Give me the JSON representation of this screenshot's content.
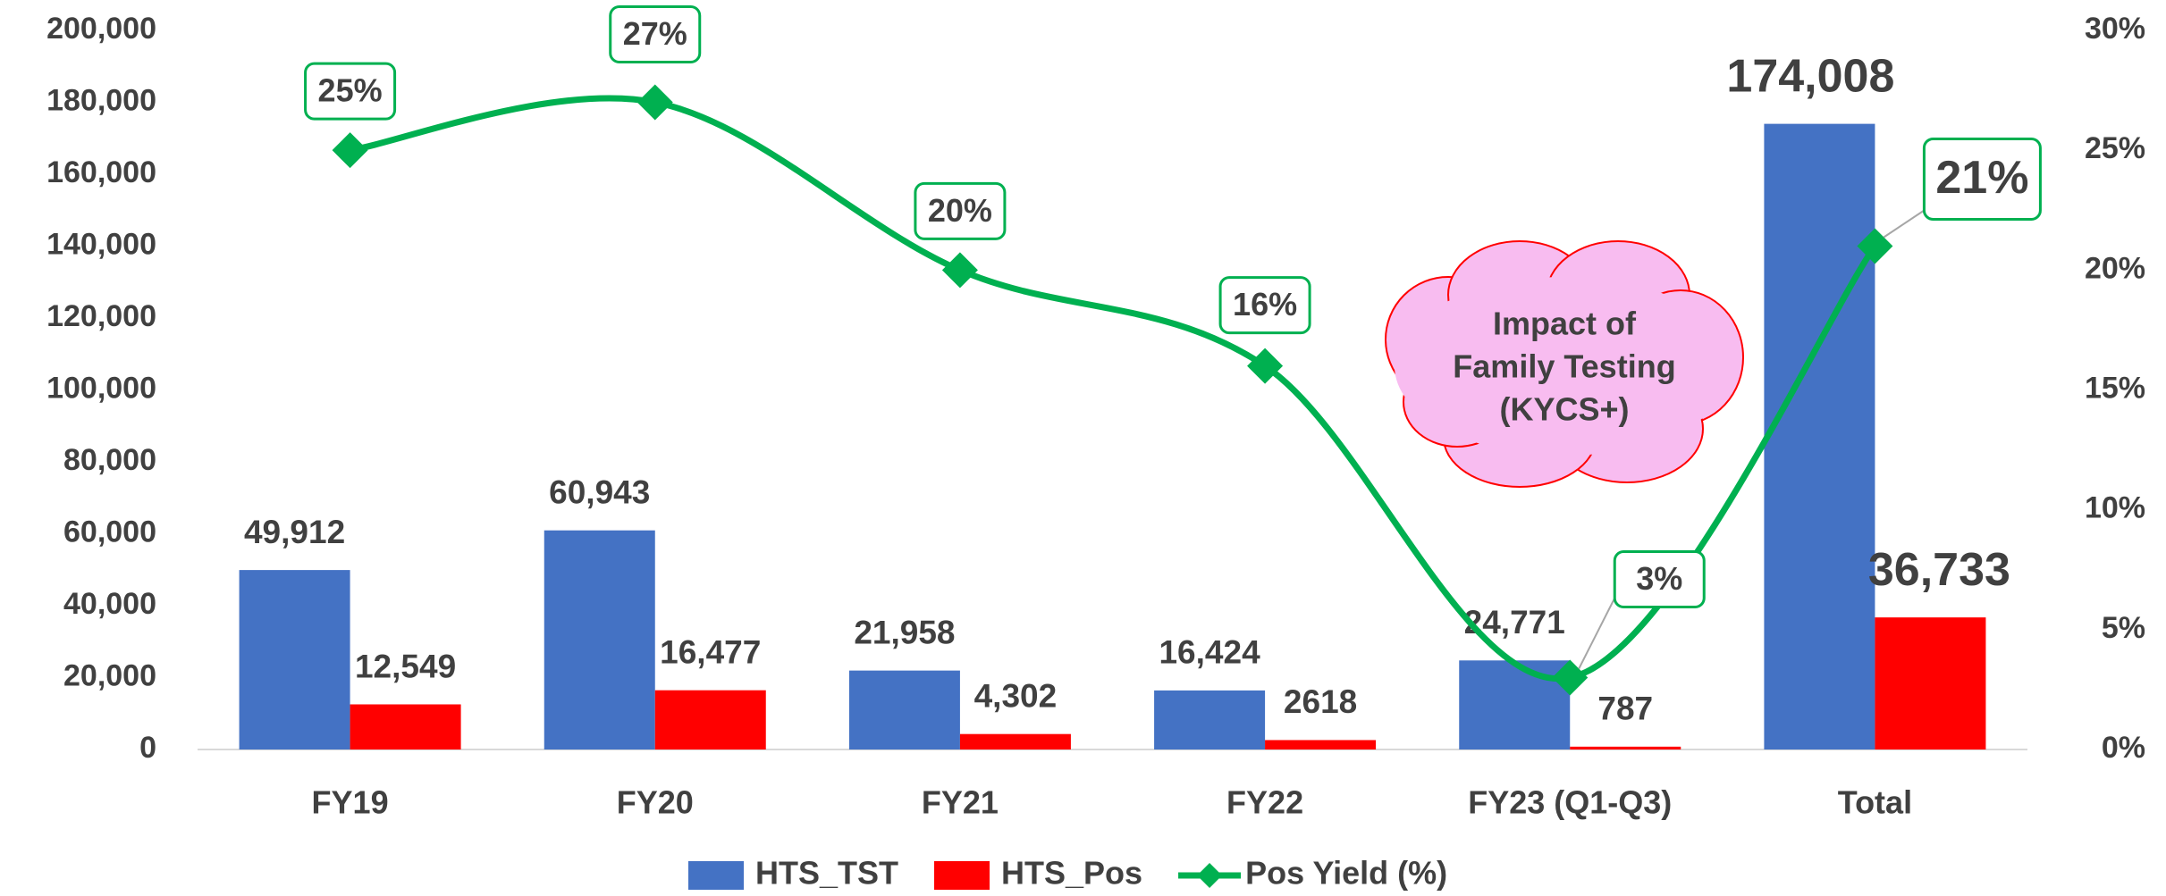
{
  "chart_data": {
    "type": "bar-line",
    "categories": [
      "FY19",
      "FY20",
      "FY21",
      "FY22",
      "FY23 (Q1-Q3)",
      "Total"
    ],
    "series": [
      {
        "name": "HTS_TST",
        "color": "#4472c4",
        "type": "bar",
        "values": [
          49912,
          60943,
          21958,
          16424,
          24771,
          174008
        ],
        "value_labels": [
          "49,912",
          "60,943",
          "21,958",
          "16,424",
          "24,771",
          "174,008"
        ]
      },
      {
        "name": "HTS_Pos",
        "color": "#ff0000",
        "type": "bar",
        "values": [
          12549,
          16477,
          4302,
          2618,
          787,
          36733
        ],
        "value_labels": [
          "12,549",
          "16,477",
          "4,302",
          "2618",
          "787",
          "36,733"
        ]
      },
      {
        "name": "Pos Yield (%)",
        "color": "#00b050",
        "type": "line",
        "axis": "y2",
        "values": [
          25,
          27,
          20,
          16,
          3,
          21
        ],
        "value_labels": [
          "25%",
          "27%",
          "20%",
          "16%",
          "3%",
          "21%"
        ]
      }
    ],
    "ylim": [
      0,
      200000
    ],
    "yticks": [
      0,
      {
        "value": 20000,
        "label": "20,000"
      },
      {
        "value": 40000,
        "label": "40,000"
      },
      {
        "value": 60000,
        "label": "60,000"
      },
      {
        "value": 80000,
        "label": "80,000"
      },
      {
        "value": 100000,
        "label": "100,000"
      },
      {
        "value": 120000,
        "label": "120,000"
      },
      {
        "value": 140000,
        "label": "140,000"
      },
      {
        "value": 160000,
        "label": "160,000"
      },
      {
        "value": 180000,
        "label": "180,000"
      },
      {
        "value": 200000,
        "label": "200,000"
      }
    ],
    "y2lim": [
      0,
      30
    ],
    "y2ticks": [
      {
        "value": 0,
        "label": "0%"
      },
      {
        "value": 5,
        "label": "5%"
      },
      {
        "value": 10,
        "label": "10%"
      },
      {
        "value": 15,
        "label": "15%"
      },
      {
        "value": 20,
        "label": "20%"
      },
      {
        "value": 25,
        "label": "25%"
      },
      {
        "value": 30,
        "label": "30%"
      }
    ],
    "annotation": [
      "Impact of",
      "Family Testing",
      "(KYCS+)"
    ],
    "legend": "bottom",
    "grid": false
  }
}
